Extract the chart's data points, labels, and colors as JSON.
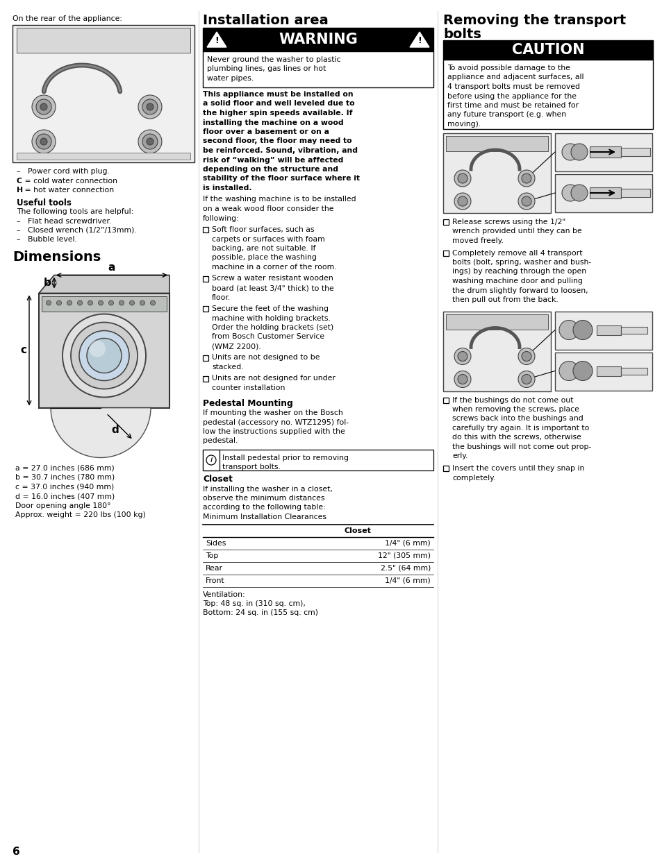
{
  "page_bg": "#ffffff",
  "page_num": "6",
  "col1_header": "On the rear of the appliance:",
  "useful_tools_header": "Useful tools",
  "useful_tools_intro": "The following tools are helpful:",
  "useful_tools_items": [
    "Flat head screwdriver.",
    "Closed wrench (1/2”/13mm).",
    "Bubble level."
  ],
  "dimensions_header": "Dimensions",
  "dimensions_vals": [
    "a = 27.0 inches (686 mm)",
    "b = 30.7 inches (780 mm)",
    "c = 37.0 inches (940 mm)",
    "d = 16.0 inches (407 mm)",
    "Door opening angle 180°",
    "Approx. weight = 220 lbs (100 kg)"
  ],
  "col2_header": "Installation area",
  "warning_text": "WARNING",
  "warning_body_lines": [
    "Never ground the washer to plastic",
    "plumbing lines, gas lines or hot",
    "water pipes."
  ],
  "installation_bold_lines": [
    "This appliance must be installed on",
    "a solid floor and well leveled due to",
    "the higher spin speeds available. If",
    "installing the machine on a wood",
    "floor over a basement or on a",
    "second floor, the floor may need to",
    "be reinforced. Sound, vibration, and",
    "risk of “walking” will be affected",
    "depending on the structure and",
    "stability of the floor surface where it",
    "is installed."
  ],
  "installation_normal_lines": [
    "If the washing machine is to be installed",
    "on a weak wood floor consider the",
    "following:"
  ],
  "installation_bullets": [
    [
      "Soft floor surfaces, such as",
      "carpets or surfaces with foam",
      "backing, are not suitable. If",
      "possible, place the washing",
      "machine in a corner of the room."
    ],
    [
      "Screw a water resistant wooden",
      "board (at least 3/4\" thick) to the",
      "floor."
    ],
    [
      "Secure the feet of the washing",
      "machine with holding brackets.",
      "Order the holding brackets (set)",
      "from Bosch Customer Service",
      "(WMZ 2200)."
    ],
    [
      "Units are not designed to be",
      "stacked."
    ],
    [
      "Units are not designed for under",
      "counter installation"
    ]
  ],
  "pedestal_header": "Pedestal Mounting",
  "pedestal_text_lines": [
    "If mounting the washer on the Bosch",
    "pedestal (accessory no. WTZ1295) fol-",
    "low the instructions supplied with the",
    "pedestal."
  ],
  "pedestal_note_lines": [
    "Install pedestal prior to removing",
    "transport bolts."
  ],
  "closet_header": "Closet",
  "closet_intro_lines": [
    "If installing the washer in a closet,",
    "observe the minimum distances",
    "according to the following table:",
    "Minimum Installation Clearances"
  ],
  "table_col_header": "Closet",
  "table_rows": [
    [
      "Sides",
      "1/4\" (6 mm)"
    ],
    [
      "Top",
      "12\" (305 mm)"
    ],
    [
      "Rear",
      "2.5\" (64 mm)"
    ],
    [
      "Front",
      "1/4\" (6 mm)"
    ]
  ],
  "ventilation_lines": [
    "Ventilation:",
    "Top: 48 sq. in (310 sq. cm),",
    "Bottom: 24 sq. in (155 sq. cm)"
  ],
  "col3_header1": "Removing the transport",
  "col3_header2": "bolts",
  "caution_text": "CAUTION",
  "caution_body_lines": [
    "To avoid possible damage to the",
    "appliance and adjacent surfaces, all",
    "4 transport bolts must be removed",
    "before using the appliance for the",
    "first time and must be retained for",
    "any future transport (e.g. when",
    "moving)."
  ],
  "transport_bullets": [
    [
      "Release screws using the 1/2\"",
      "wrench provided until they can be",
      "moved freely."
    ],
    [
      "Completely remove all 4 transport",
      "bolts (bolt, spring, washer and bush-",
      "ings) by reaching through the open",
      "washing machine door and pulling",
      "the drum slightly forward to loosen,",
      "then pull out from the back."
    ],
    [
      "If the bushings do not come out",
      "when removing the screws, place",
      "screws back into the bushings and",
      "carefully try again. It is important to",
      "do this with the screws, otherwise",
      "the bushings will not come out prop-",
      "erly."
    ],
    [
      "Insert the covers until they snap in",
      "completely."
    ]
  ]
}
